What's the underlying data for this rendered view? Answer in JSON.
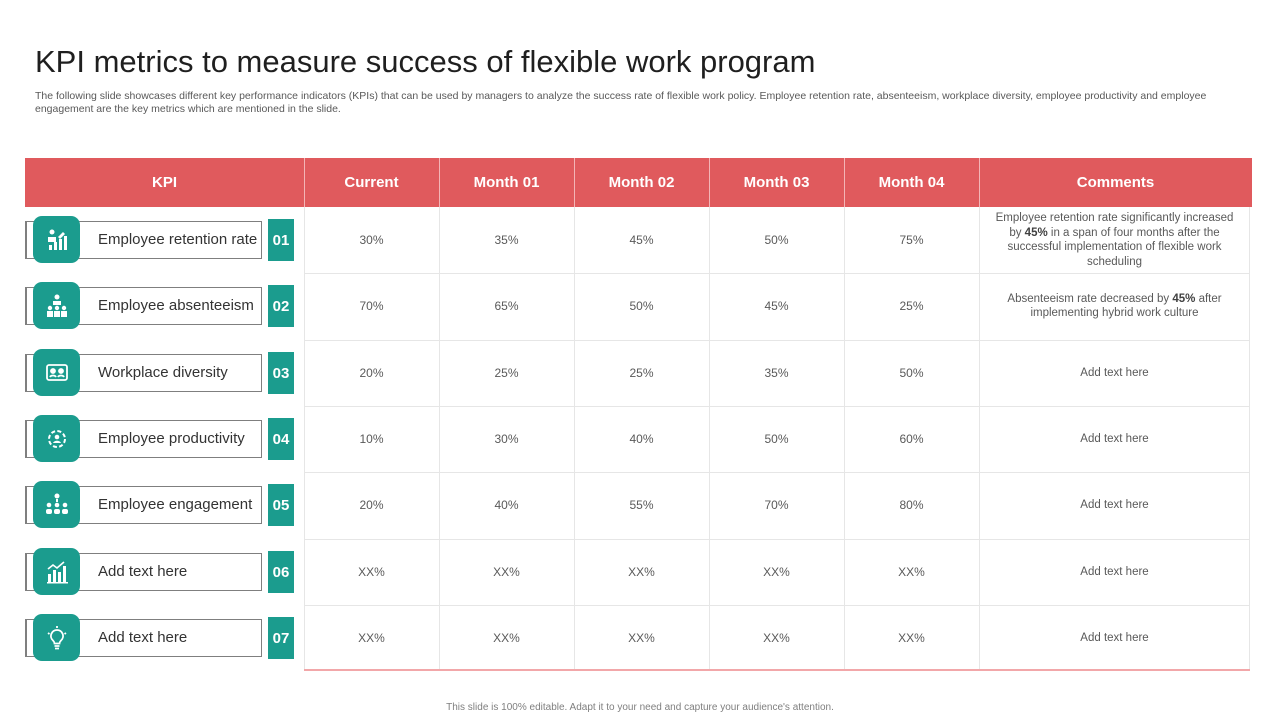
{
  "title": "KPI metrics to measure success of flexible work program",
  "subtitle": "The following slide showcases different key performance indicators (KPIs) that can be used by managers to analyze the success rate of flexible work policy. Employee retention rate, absenteeism, workplace diversity, employee productivity and employee engagement are the key metrics which are mentioned in the slide.",
  "headers": {
    "kpi": "KPI",
    "current": "Current",
    "m1": "Month 01",
    "m2": "Month 02",
    "m3": "Month 03",
    "m4": "Month 04",
    "comments": "Comments"
  },
  "rows": [
    {
      "label": "Employee retention rate",
      "num": "01",
      "icon": "growth-chart-icon",
      "current": "30%",
      "m1": "35%",
      "m2": "45%",
      "m3": "50%",
      "m4": "75%",
      "comment": {
        "before": "Employee retention rate significantly increased by ",
        "bold": "45%",
        "after": " in a span of four months after the successful implementation of flexible work scheduling"
      }
    },
    {
      "label": "Employee absenteeism",
      "num": "02",
      "icon": "team-hierarchy-icon",
      "current": "70%",
      "m1": "65%",
      "m2": "50%",
      "m3": "45%",
      "m4": "25%",
      "comment": {
        "before": "Absenteeism rate decreased by ",
        "bold": "45%",
        "after": " after implementing hybrid work culture"
      }
    },
    {
      "label": "Workplace diversity",
      "num": "03",
      "icon": "video-meeting-icon",
      "current": "20%",
      "m1": "25%",
      "m2": "25%",
      "m3": "35%",
      "m4": "50%",
      "comment": {
        "before": "Add text here",
        "bold": "",
        "after": ""
      }
    },
    {
      "label": "Employee productivity",
      "num": "04",
      "icon": "gear-people-icon",
      "current": "10%",
      "m1": "30%",
      "m2": "40%",
      "m3": "50%",
      "m4": "60%",
      "comment": {
        "before": "Add text here",
        "bold": "",
        "after": ""
      }
    },
    {
      "label": "Employee engagement",
      "num": "05",
      "icon": "network-people-icon",
      "current": "20%",
      "m1": "40%",
      "m2": "55%",
      "m3": "70%",
      "m4": "80%",
      "comment": {
        "before": "Add text here",
        "bold": "",
        "after": ""
      }
    },
    {
      "label": "Add text here",
      "num": "06",
      "icon": "bar-chart-icon",
      "current": "XX%",
      "m1": "XX%",
      "m2": "XX%",
      "m3": "XX%",
      "m4": "XX%",
      "comment": {
        "before": "Add text here",
        "bold": "",
        "after": ""
      }
    },
    {
      "label": "Add text here",
      "num": "07",
      "icon": "lightbulb-icon",
      "current": "XX%",
      "m1": "XX%",
      "m2": "XX%",
      "m3": "XX%",
      "m4": "XX%",
      "comment": {
        "before": "Add text here",
        "bold": "",
        "after": ""
      }
    }
  ],
  "footer": "This slide is 100% editable. Adapt it to your need and capture your audience's attention.",
  "colors": {
    "header_red": "#e05a5d",
    "teal": "#1b9c8e"
  }
}
